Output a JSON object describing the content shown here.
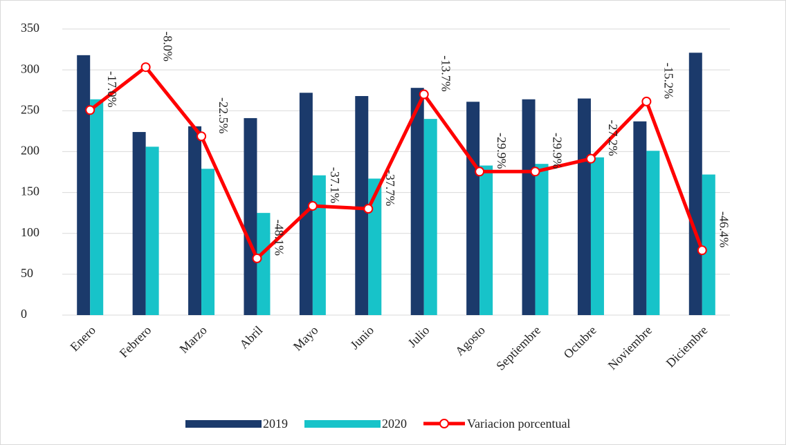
{
  "chart_data": {
    "type": "bar_line",
    "categories": [
      "Enero",
      "Febrero",
      "Marzo",
      "Abril",
      "Mayo",
      "Junio",
      "Julio",
      "Agosto",
      "Septiembre",
      "Octubre",
      "Noviembre",
      "Diciembre"
    ],
    "series": [
      {
        "name": "2019",
        "color": "#1b3a6b",
        "type": "bar",
        "values": [
          318,
          224,
          231,
          241,
          272,
          268,
          278,
          261,
          264,
          265,
          237,
          321
        ]
      },
      {
        "name": "2020",
        "color": "#17c3c9",
        "type": "bar",
        "values": [
          264,
          206,
          179,
          125,
          171,
          167,
          240,
          183,
          185,
          193,
          201,
          172
        ]
      },
      {
        "name": "Variacion porcentual",
        "color": "#ff0000",
        "type": "line",
        "axis": "y2",
        "values": [
          -17.0,
          -8.0,
          -22.5,
          -48.1,
          -37.1,
          -37.7,
          -13.7,
          -29.9,
          -29.9,
          -27.2,
          -15.2,
          -46.4
        ],
        "value_labels": [
          "-17.0%",
          "-8.0%",
          "-22.5%",
          "-48.1%",
          "-37.1%",
          "-37.7%",
          "-13.7%",
          "-29.9%",
          "-29.9%",
          "-27.2%",
          "-15.2%",
          "-46.4%"
        ]
      }
    ],
    "ylim": [
      0,
      350
    ],
    "yticks": [
      0,
      50,
      100,
      150,
      200,
      250,
      300,
      350
    ],
    "y2lim": [
      -60,
      0
    ],
    "grid": true,
    "legend": "bottom"
  }
}
